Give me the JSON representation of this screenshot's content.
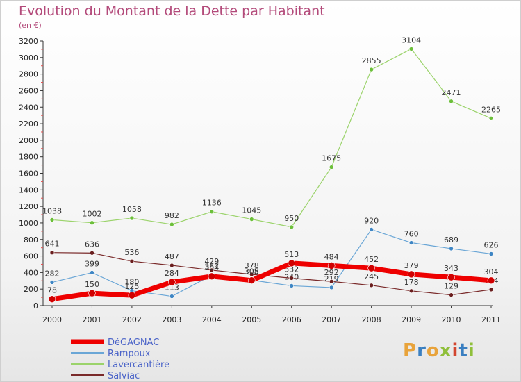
{
  "header": {
    "title": "Evolution du Montant de la Dette par Habitant",
    "subtitle": "(en €)"
  },
  "logo": {
    "text": "Proxiti",
    "colors": [
      "#e8a33b",
      "#3a7fc1",
      "#e8a33b",
      "#8fbf3a",
      "#d2452f",
      "#3a7fc1",
      "#8fbf3a"
    ]
  },
  "chart_data": {
    "type": "line",
    "x": [
      "2000",
      "2001",
      "2002",
      "2003",
      "2004",
      "2005",
      "2006",
      "2007",
      "2008",
      "2009",
      "2010",
      "2011"
    ],
    "ylim": [
      0,
      3200
    ],
    "yticks": [
      0,
      200,
      400,
      600,
      800,
      1000,
      1200,
      1400,
      1600,
      1800,
      2000,
      2200,
      2400,
      2600,
      2800,
      3000,
      3200
    ],
    "grid": false,
    "legend": "bottom-left",
    "series": [
      {
        "name": "Lavercantière",
        "color": "#9bd36b",
        "marker": "#6cbf3a",
        "width": 1.2,
        "values": [
          1038,
          1002,
          1058,
          982,
          1136,
          1045,
          950,
          1675,
          2855,
          3104,
          2471,
          2265
        ]
      },
      {
        "name": "Rampoux",
        "color": "#6aa6d6",
        "marker": "#3f86c4",
        "width": 1.2,
        "values": [
          282,
          399,
          180,
          113,
          367,
          308,
          240,
          219,
          920,
          760,
          689,
          626
        ]
      },
      {
        "name": "Salviac",
        "color": "#7a2a2a",
        "marker": "#6a1e1e",
        "width": 1.2,
        "values": [
          641,
          636,
          536,
          487,
          429,
          378,
          332,
          292,
          245,
          178,
          129,
          194
        ]
      },
      {
        "name": "DéGAGNAC",
        "color": "#ee0000",
        "marker": "#d00000",
        "width": 7,
        "values": [
          78,
          150,
          125,
          284,
          354,
          305,
          513,
          484,
          452,
          379,
          343,
          304
        ]
      }
    ],
    "legend_order": [
      "DéGAGNAC",
      "Rampoux",
      "Lavercantière",
      "Salviac"
    ]
  }
}
